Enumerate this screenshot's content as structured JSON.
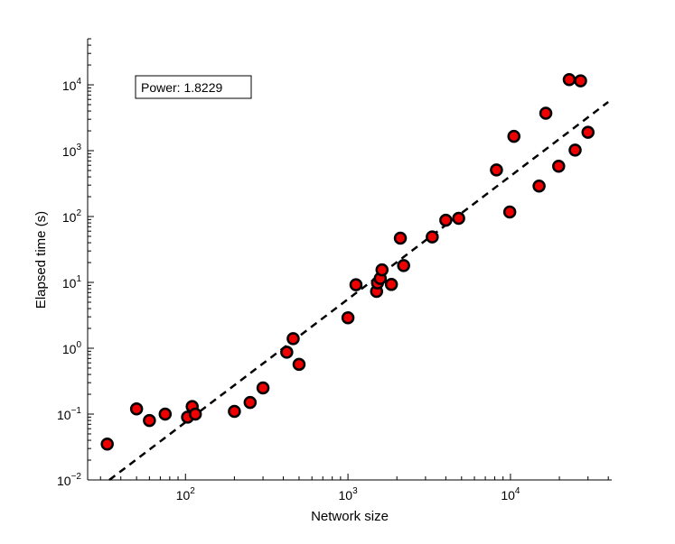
{
  "chart_data": {
    "type": "scatter",
    "title": "",
    "xlabel": "Network size",
    "ylabel": "Elapsed time (s)",
    "xscale": "log",
    "yscale": "log",
    "xlim": [
      25,
      42000
    ],
    "ylim": [
      0.01,
      50000
    ],
    "grid": false,
    "legend": "none",
    "annotation": "Power: 1.8229",
    "annotation_position": "top-left",
    "x_ticks": [
      {
        "value": 100,
        "label": "10",
        "exp": "2"
      },
      {
        "value": 1000,
        "label": "10",
        "exp": "3"
      },
      {
        "value": 10000,
        "label": "10",
        "exp": "4"
      }
    ],
    "y_ticks": [
      {
        "value": 0.01,
        "label": "10",
        "exp": "−2"
      },
      {
        "value": 0.1,
        "label": "10",
        "exp": "−1"
      },
      {
        "value": 1,
        "label": "10",
        "exp": "0"
      },
      {
        "value": 10,
        "label": "10",
        "exp": "1"
      },
      {
        "value": 100,
        "label": "10",
        "exp": "2"
      },
      {
        "value": 1000,
        "label": "10",
        "exp": "3"
      },
      {
        "value": 10000,
        "label": "10",
        "exp": "4"
      }
    ],
    "points": [
      {
        "x": 33,
        "y": 0.035
      },
      {
        "x": 50,
        "y": 0.12
      },
      {
        "x": 60,
        "y": 0.08
      },
      {
        "x": 75,
        "y": 0.1
      },
      {
        "x": 103,
        "y": 0.09
      },
      {
        "x": 110,
        "y": 0.13
      },
      {
        "x": 115,
        "y": 0.1
      },
      {
        "x": 200,
        "y": 0.11
      },
      {
        "x": 250,
        "y": 0.15
      },
      {
        "x": 300,
        "y": 0.25
      },
      {
        "x": 420,
        "y": 0.87
      },
      {
        "x": 460,
        "y": 1.4
      },
      {
        "x": 500,
        "y": 0.57
      },
      {
        "x": 1000,
        "y": 2.9
      },
      {
        "x": 1120,
        "y": 9.2
      },
      {
        "x": 1500,
        "y": 7.3
      },
      {
        "x": 1520,
        "y": 9.8
      },
      {
        "x": 1580,
        "y": 11.5
      },
      {
        "x": 1620,
        "y": 15.5
      },
      {
        "x": 1850,
        "y": 9.3
      },
      {
        "x": 2100,
        "y": 47
      },
      {
        "x": 2200,
        "y": 18
      },
      {
        "x": 3300,
        "y": 49
      },
      {
        "x": 4000,
        "y": 88
      },
      {
        "x": 4800,
        "y": 94
      },
      {
        "x": 8200,
        "y": 510
      },
      {
        "x": 9900,
        "y": 117
      },
      {
        "x": 10500,
        "y": 1650
      },
      {
        "x": 15000,
        "y": 290
      },
      {
        "x": 16500,
        "y": 3700
      },
      {
        "x": 19800,
        "y": 580
      },
      {
        "x": 23000,
        "y": 12000
      },
      {
        "x": 25000,
        "y": 1020
      },
      {
        "x": 27000,
        "y": 11500
      },
      {
        "x": 30000,
        "y": 1900
      }
    ],
    "fit_line": {
      "style": "dashed",
      "color": "#000000",
      "from": {
        "x": 34,
        "y": 0.0075
      },
      "to": {
        "x": 40000,
        "y": 5500
      }
    },
    "colors": {
      "marker_fill": "#ee0000",
      "marker_edge": "#000000",
      "axis": "#000000",
      "background": "#ffffff"
    }
  }
}
